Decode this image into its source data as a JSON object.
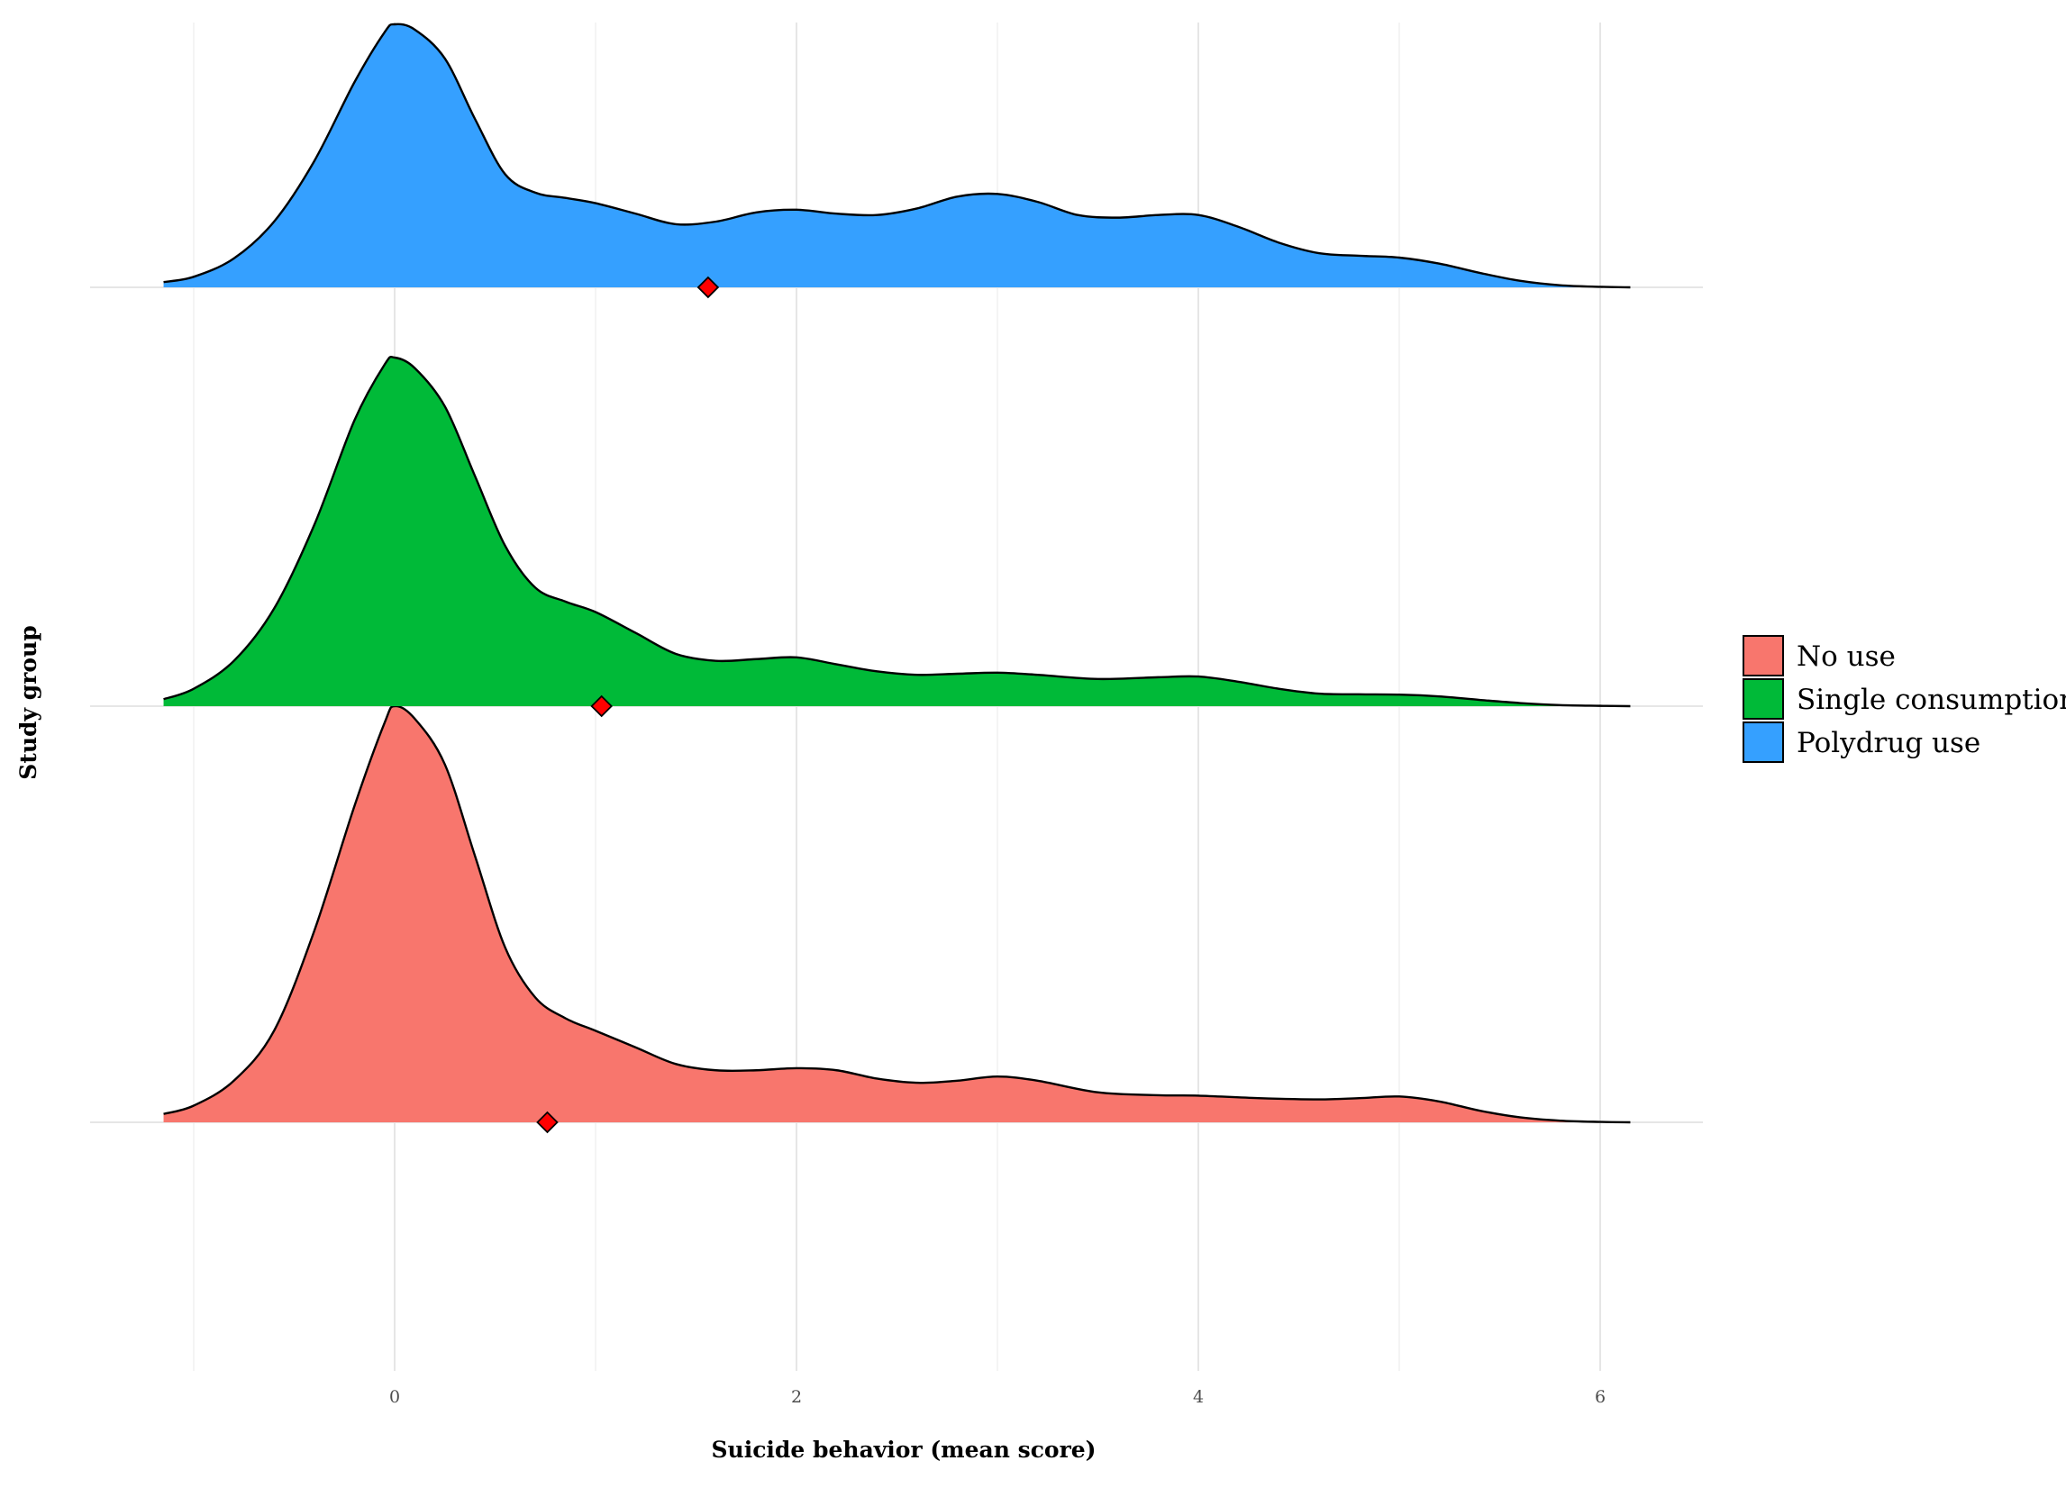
{
  "chart_data": {
    "type": "ridgeline",
    "title": "",
    "xlabel": "Suicide behavior (mean score)",
    "ylabel": "Study group",
    "xlim": [
      -1.2,
      6.2
    ],
    "x_ticks": [
      0,
      2,
      4,
      6
    ],
    "grid": true,
    "legend_position": "right",
    "mean_marker_color": "#ff0000",
    "series": [
      {
        "name": "No use",
        "color": "#f8766d",
        "mean": 0.76,
        "density": [
          [
            -1.15,
            0.02
          ],
          [
            -1.0,
            0.04
          ],
          [
            -0.8,
            0.1
          ],
          [
            -0.6,
            0.22
          ],
          [
            -0.4,
            0.46
          ],
          [
            -0.2,
            0.76
          ],
          [
            -0.05,
            0.96
          ],
          [
            0.0,
            1.0
          ],
          [
            0.1,
            0.97
          ],
          [
            0.25,
            0.86
          ],
          [
            0.4,
            0.64
          ],
          [
            0.55,
            0.42
          ],
          [
            0.7,
            0.3
          ],
          [
            0.85,
            0.25
          ],
          [
            1.0,
            0.22
          ],
          [
            1.2,
            0.18
          ],
          [
            1.4,
            0.14
          ],
          [
            1.6,
            0.125
          ],
          [
            1.8,
            0.125
          ],
          [
            2.0,
            0.13
          ],
          [
            2.2,
            0.125
          ],
          [
            2.4,
            0.105
          ],
          [
            2.6,
            0.095
          ],
          [
            2.8,
            0.1
          ],
          [
            3.0,
            0.11
          ],
          [
            3.2,
            0.1
          ],
          [
            3.5,
            0.072
          ],
          [
            3.8,
            0.065
          ],
          [
            4.0,
            0.064
          ],
          [
            4.3,
            0.058
          ],
          [
            4.6,
            0.055
          ],
          [
            4.8,
            0.058
          ],
          [
            5.0,
            0.062
          ],
          [
            5.2,
            0.05
          ],
          [
            5.4,
            0.028
          ],
          [
            5.6,
            0.012
          ],
          [
            5.8,
            0.004
          ],
          [
            6.0,
            0.001
          ],
          [
            6.15,
            0.0
          ]
        ]
      },
      {
        "name": "Single consumption",
        "color": "#00ba38",
        "mean": 1.03,
        "density": [
          [
            -1.15,
            0.02
          ],
          [
            -1.0,
            0.05
          ],
          [
            -0.8,
            0.13
          ],
          [
            -0.6,
            0.28
          ],
          [
            -0.4,
            0.52
          ],
          [
            -0.2,
            0.82
          ],
          [
            -0.05,
            0.98
          ],
          [
            0.0,
            1.0
          ],
          [
            0.1,
            0.97
          ],
          [
            0.25,
            0.86
          ],
          [
            0.4,
            0.66
          ],
          [
            0.55,
            0.46
          ],
          [
            0.7,
            0.34
          ],
          [
            0.85,
            0.3
          ],
          [
            1.0,
            0.27
          ],
          [
            1.2,
            0.21
          ],
          [
            1.4,
            0.15
          ],
          [
            1.6,
            0.13
          ],
          [
            1.8,
            0.135
          ],
          [
            2.0,
            0.14
          ],
          [
            2.2,
            0.12
          ],
          [
            2.4,
            0.1
          ],
          [
            2.6,
            0.09
          ],
          [
            2.8,
            0.093
          ],
          [
            3.0,
            0.096
          ],
          [
            3.2,
            0.09
          ],
          [
            3.5,
            0.078
          ],
          [
            3.8,
            0.083
          ],
          [
            4.0,
            0.085
          ],
          [
            4.2,
            0.07
          ],
          [
            4.4,
            0.05
          ],
          [
            4.6,
            0.036
          ],
          [
            4.8,
            0.034
          ],
          [
            5.0,
            0.033
          ],
          [
            5.2,
            0.028
          ],
          [
            5.4,
            0.018
          ],
          [
            5.6,
            0.009
          ],
          [
            5.8,
            0.003
          ],
          [
            6.0,
            0.001
          ],
          [
            6.15,
            0.0
          ]
        ]
      },
      {
        "name": "Polydrug use",
        "color": "#35a0ff",
        "mean": 1.56,
        "density": [
          [
            -1.15,
            0.02
          ],
          [
            -1.0,
            0.04
          ],
          [
            -0.8,
            0.11
          ],
          [
            -0.6,
            0.25
          ],
          [
            -0.4,
            0.48
          ],
          [
            -0.2,
            0.78
          ],
          [
            -0.05,
            0.97
          ],
          [
            0.0,
            1.0
          ],
          [
            0.1,
            0.98
          ],
          [
            0.25,
            0.87
          ],
          [
            0.4,
            0.64
          ],
          [
            0.55,
            0.43
          ],
          [
            0.7,
            0.36
          ],
          [
            0.85,
            0.34
          ],
          [
            1.0,
            0.32
          ],
          [
            1.2,
            0.28
          ],
          [
            1.4,
            0.24
          ],
          [
            1.6,
            0.25
          ],
          [
            1.8,
            0.285
          ],
          [
            2.0,
            0.295
          ],
          [
            2.2,
            0.28
          ],
          [
            2.4,
            0.275
          ],
          [
            2.6,
            0.3
          ],
          [
            2.8,
            0.345
          ],
          [
            3.0,
            0.355
          ],
          [
            3.2,
            0.325
          ],
          [
            3.4,
            0.275
          ],
          [
            3.6,
            0.265
          ],
          [
            3.8,
            0.275
          ],
          [
            4.0,
            0.275
          ],
          [
            4.2,
            0.23
          ],
          [
            4.4,
            0.17
          ],
          [
            4.6,
            0.13
          ],
          [
            4.8,
            0.12
          ],
          [
            5.0,
            0.113
          ],
          [
            5.2,
            0.09
          ],
          [
            5.4,
            0.055
          ],
          [
            5.6,
            0.025
          ],
          [
            5.8,
            0.008
          ],
          [
            6.0,
            0.002
          ],
          [
            6.15,
            0.0
          ]
        ]
      }
    ]
  }
}
